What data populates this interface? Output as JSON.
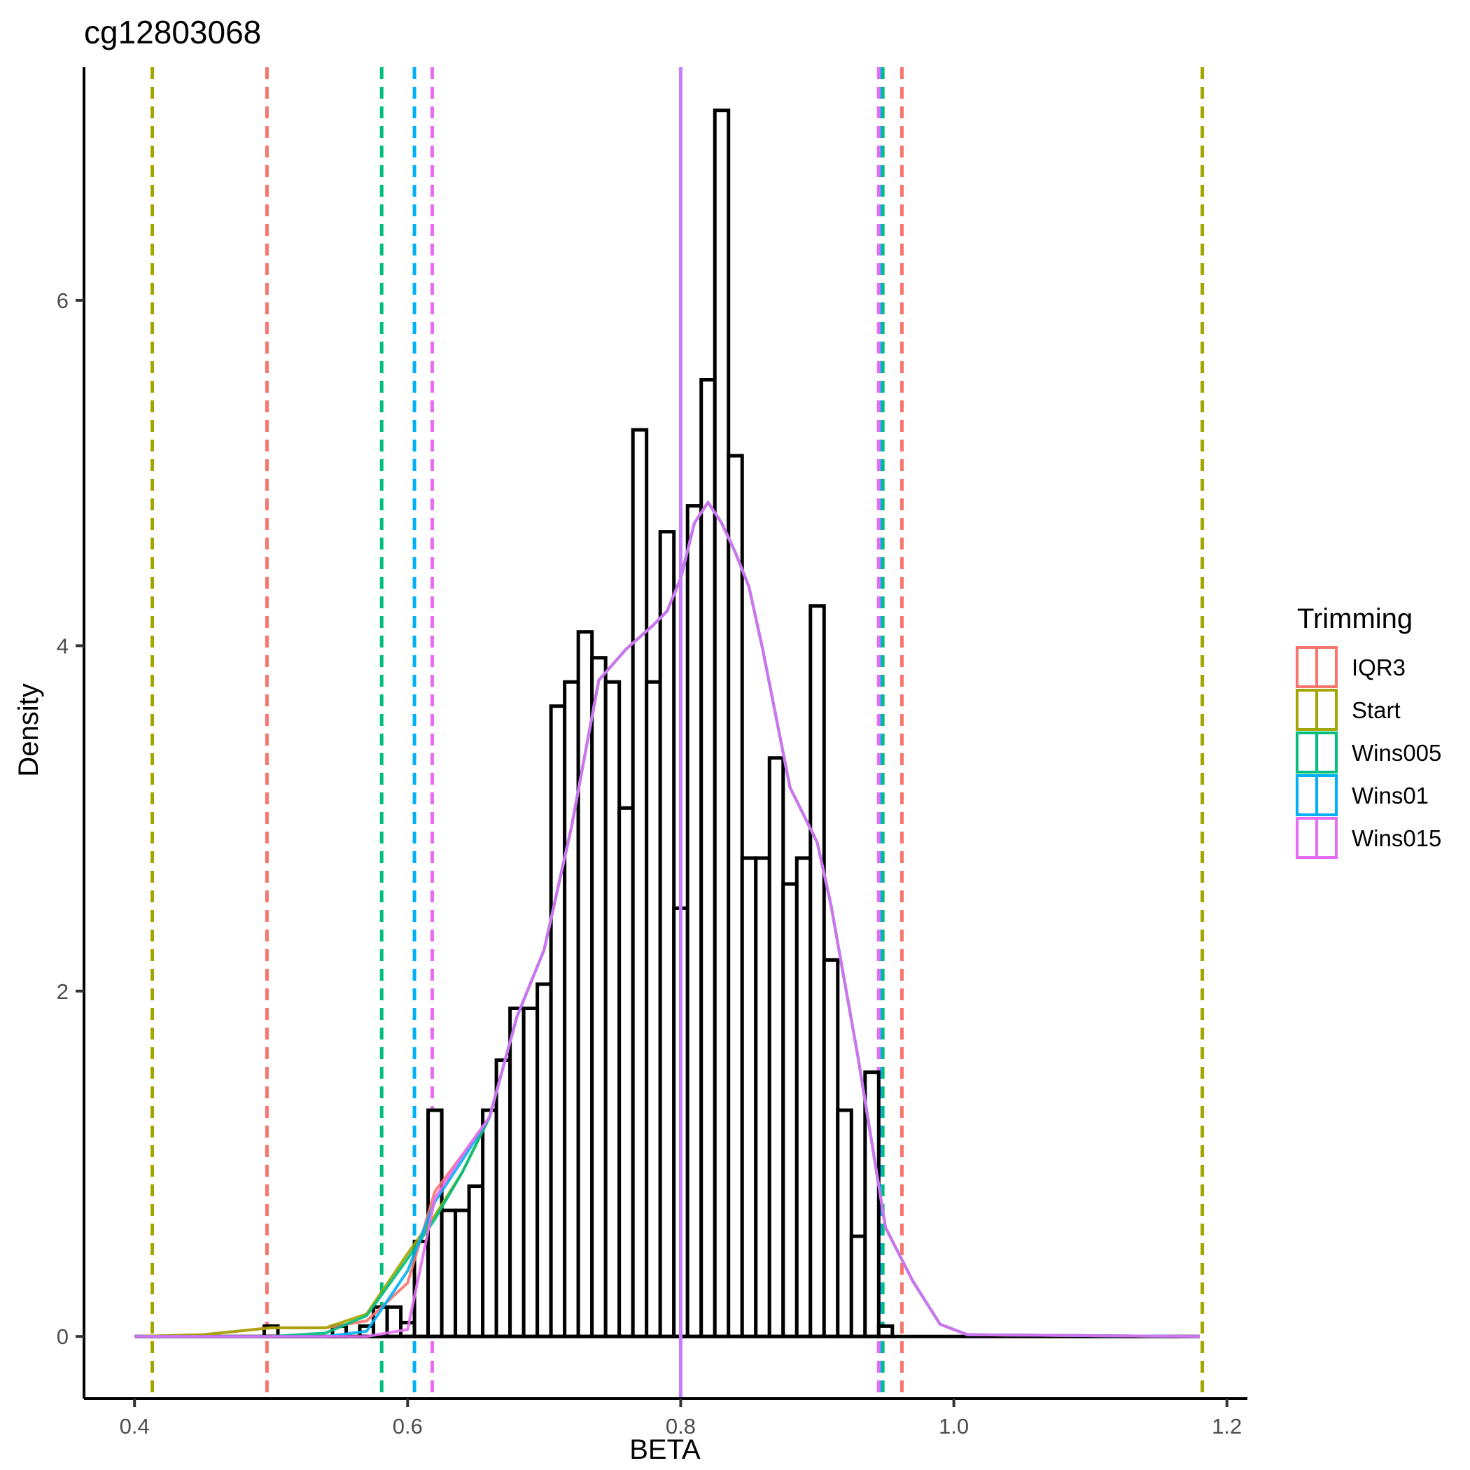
{
  "chart_data": {
    "type": "bar",
    "title": "cg12803068",
    "xlabel": "BETA",
    "ylabel": "Density",
    "xlim": [
      0.363,
      1.215
    ],
    "ylim": [
      -0.36,
      7.35
    ],
    "xticks": [
      0.4,
      0.6,
      0.8,
      1.0,
      1.2
    ],
    "xtick_labels": [
      "0.4",
      "0.6",
      "0.8",
      "1.0",
      "1.2"
    ],
    "yticks": [
      0,
      2,
      4,
      6
    ],
    "ytick_labels": [
      "0",
      "2",
      "4",
      "6"
    ],
    "grid": false,
    "histogram": {
      "bin_width": 0.01,
      "bins_start": [
        0.495,
        0.545,
        0.555,
        0.565,
        0.575,
        0.585,
        0.595,
        0.605,
        0.615,
        0.625,
        0.635,
        0.645,
        0.655,
        0.665,
        0.675,
        0.685,
        0.695,
        0.705,
        0.715,
        0.725,
        0.735,
        0.745,
        0.755,
        0.765,
        0.775,
        0.785,
        0.795,
        0.805,
        0.815,
        0.825,
        0.835,
        0.845,
        0.855,
        0.865,
        0.875,
        0.885,
        0.895,
        0.905,
        0.915,
        0.925,
        0.935,
        0.945,
        0.955
      ],
      "values": [
        0.06,
        0.06,
        0.0,
        0.06,
        0.17,
        0.17,
        0.08,
        0.55,
        1.31,
        0.73,
        0.73,
        0.87,
        1.31,
        1.6,
        1.9,
        1.9,
        2.04,
        3.65,
        3.79,
        4.08,
        3.93,
        3.79,
        3.06,
        5.25,
        3.79,
        4.66,
        2.48,
        4.81,
        5.54,
        7.1,
        5.1,
        2.77,
        2.77,
        3.35,
        2.62,
        2.77,
        4.23,
        2.18,
        1.31,
        0.58,
        1.53,
        0.06,
        0.0
      ]
    },
    "density_x": [
      0.4,
      0.45,
      0.5,
      0.54,
      0.57,
      0.6,
      0.62,
      0.64,
      0.66,
      0.68,
      0.7,
      0.72,
      0.74,
      0.76,
      0.78,
      0.79,
      0.8,
      0.81,
      0.82,
      0.83,
      0.84,
      0.85,
      0.86,
      0.87,
      0.88,
      0.9,
      0.91,
      0.93,
      0.95,
      0.97,
      0.99,
      1.01,
      1.18
    ],
    "series": [
      {
        "name": "IQR3",
        "color": "#F8766D",
        "vlines": [
          0.497,
          0.962
        ],
        "density": [
          0.0,
          0.01,
          0.05,
          0.05,
          0.09,
          0.31,
          0.84,
          1.05,
          1.27,
          1.85,
          2.24,
          2.95,
          3.8,
          3.98,
          4.12,
          4.2,
          4.39,
          4.71,
          4.83,
          4.71,
          4.54,
          4.34,
          3.98,
          3.58,
          3.18,
          2.86,
          2.5,
          1.61,
          0.63,
          0.32,
          0.07,
          0.01,
          0.0
        ]
      },
      {
        "name": "Start",
        "color": "#A3A500",
        "vlines": [
          0.413,
          1.182
        ],
        "density": [
          0.0,
          0.01,
          0.05,
          0.05,
          0.13,
          0.48,
          0.7,
          0.95,
          1.27,
          1.85,
          2.24,
          2.95,
          3.8,
          3.98,
          4.12,
          4.2,
          4.39,
          4.71,
          4.83,
          4.71,
          4.54,
          4.34,
          3.98,
          3.58,
          3.18,
          2.86,
          2.5,
          1.61,
          0.63,
          0.32,
          0.07,
          0.01,
          0.0
        ]
      },
      {
        "name": "Wins005",
        "color": "#00BF7D",
        "vlines": [
          0.581,
          0.948
        ],
        "density": [
          0.0,
          0.0,
          0.0,
          0.02,
          0.12,
          0.45,
          0.68,
          0.95,
          1.27,
          1.85,
          2.24,
          2.95,
          3.8,
          3.98,
          4.12,
          4.2,
          4.39,
          4.71,
          4.83,
          4.71,
          4.54,
          4.34,
          3.98,
          3.58,
          3.18,
          2.86,
          2.5,
          1.61,
          0.63,
          0.32,
          0.07,
          0.01,
          0.0
        ]
      },
      {
        "name": "Wins01",
        "color": "#00B0F6",
        "vlines": [
          0.605,
          0.946
        ],
        "density": [
          0.0,
          0.0,
          0.0,
          0.0,
          0.03,
          0.38,
          0.78,
          1.02,
          1.27,
          1.85,
          2.24,
          2.95,
          3.8,
          3.98,
          4.12,
          4.2,
          4.39,
          4.71,
          4.83,
          4.71,
          4.54,
          4.34,
          3.98,
          3.58,
          3.18,
          2.86,
          2.5,
          1.61,
          0.63,
          0.32,
          0.07,
          0.01,
          0.0
        ]
      },
      {
        "name": "Wins015",
        "color": "#E76BF3",
        "vlines": [
          0.618,
          0.945
        ],
        "density": [
          0.0,
          0.0,
          0.0,
          0.0,
          0.0,
          0.04,
          0.8,
          1.05,
          1.27,
          1.85,
          2.24,
          2.95,
          3.8,
          3.98,
          4.12,
          4.2,
          4.39,
          4.71,
          4.83,
          4.71,
          4.54,
          4.34,
          3.98,
          3.58,
          3.18,
          2.86,
          2.5,
          1.61,
          0.63,
          0.32,
          0.07,
          0.01,
          0.0
        ]
      }
    ],
    "mean_line": {
      "x": 0.8,
      "color": "#C77CFF"
    },
    "legend": {
      "title": "Trimming",
      "placement": "right"
    }
  }
}
